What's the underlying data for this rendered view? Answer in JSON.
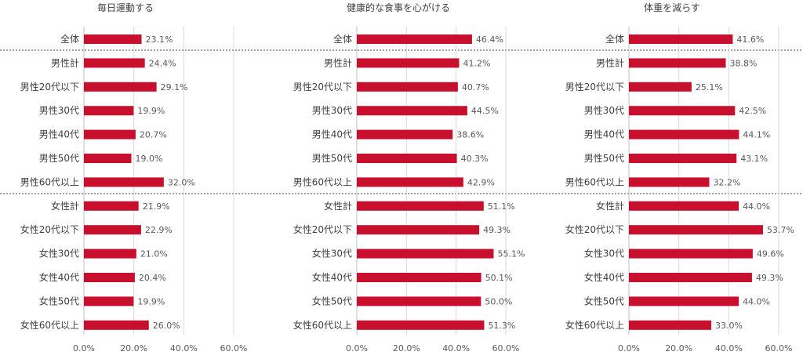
{
  "chart_data": {
    "type": "bar",
    "orientation": "horizontal",
    "categories": [
      "全体",
      "男性計",
      "男性20代以下",
      "男性30代",
      "男性40代",
      "男性50代",
      "男性60代以上",
      "女性計",
      "女性20代以下",
      "女性30代",
      "女性40代",
      "女性50代",
      "女性60代以上"
    ],
    "xlim": [
      0,
      60
    ],
    "xticks": [
      "0.0%",
      "20.0%",
      "40.0%",
      "60.0%"
    ],
    "bar_color": "#c8102e",
    "grid": true,
    "panels": [
      {
        "title": "毎日運動する",
        "values": [
          23.1,
          24.4,
          29.1,
          19.9,
          20.7,
          19.0,
          32.0,
          21.9,
          22.9,
          21.0,
          20.4,
          19.9,
          26.0
        ],
        "labels": [
          "23.1%",
          "24.4%",
          "29.1%",
          "19.9%",
          "20.7%",
          "19.0%",
          "32.0%",
          "21.9%",
          "22.9%",
          "21.0%",
          "20.4%",
          "19.9%",
          "26.0%"
        ]
      },
      {
        "title": "健康的な食事を心がける",
        "values": [
          46.4,
          41.2,
          40.7,
          44.5,
          38.6,
          40.3,
          42.9,
          51.1,
          49.3,
          55.1,
          50.1,
          50.0,
          51.3
        ],
        "labels": [
          "46.4%",
          "41.2%",
          "40.7%",
          "44.5%",
          "38.6%",
          "40.3%",
          "42.9%",
          "51.1%",
          "49.3%",
          "55.1%",
          "50.1%",
          "50.0%",
          "51.3%"
        ]
      },
      {
        "title": "体重を減らす",
        "values": [
          41.6,
          38.8,
          25.1,
          42.5,
          44.1,
          43.1,
          32.2,
          44.0,
          53.7,
          49.6,
          49.3,
          44.0,
          33.0
        ],
        "labels": [
          "41.6%",
          "38.8%",
          "25.1%",
          "42.5%",
          "44.1%",
          "43.1%",
          "32.2%",
          "44.0%",
          "53.7%",
          "49.6%",
          "49.3%",
          "44.0%",
          "33.0%"
        ]
      }
    ]
  }
}
